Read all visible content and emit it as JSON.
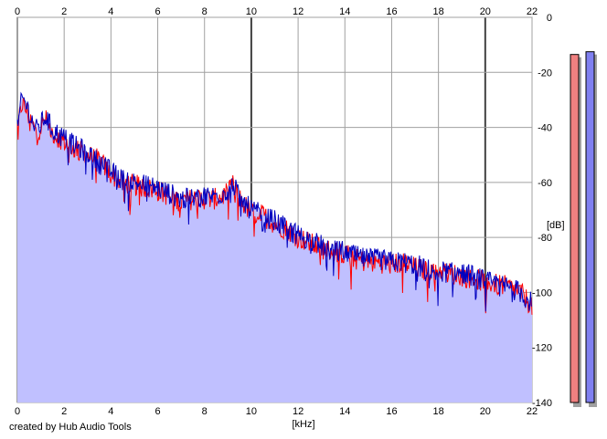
{
  "chart_data": {
    "type": "area",
    "title": "",
    "xlabel": "[kHz]",
    "ylabel": "[dB]",
    "xlim": [
      0,
      22
    ],
    "ylim": [
      -140,
      0
    ],
    "x_ticks_top": [
      "0",
      "2",
      "4",
      "6",
      "8",
      "10",
      "12",
      "14",
      "16",
      "18",
      "20",
      "22"
    ],
    "x_ticks_bottom": [
      "0",
      "2",
      "4",
      "6",
      "8",
      "10",
      "12",
      "14",
      "16",
      "18",
      "20",
      "22"
    ],
    "y_ticks": [
      "0",
      "-20",
      "-40",
      "-60",
      "-80",
      "-100",
      "-120",
      "-140"
    ],
    "grid": true,
    "series": [
      {
        "color": "#ff0000",
        "x": [
          0,
          0.1,
          0.2,
          0.4,
          0.6,
          0.8,
          1,
          1.2,
          1.5,
          2,
          2.5,
          3,
          3.5,
          4,
          4.5,
          5,
          5.5,
          6,
          6.5,
          7,
          7.5,
          8,
          8.5,
          9,
          9.2,
          9.5,
          10,
          10.5,
          11,
          11.5,
          12,
          12.5,
          13,
          13.5,
          14,
          14.5,
          15,
          15.5,
          16,
          16.5,
          17,
          17.5,
          18,
          18.5,
          19,
          19.5,
          20,
          20.5,
          21,
          21.5,
          22
        ],
        "values": [
          -40,
          -36,
          -31,
          -34,
          -38,
          -42,
          -40,
          -37,
          -42,
          -45,
          -48,
          -50,
          -52,
          -57,
          -60,
          -61,
          -62,
          -63,
          -65,
          -67,
          -66,
          -66,
          -66,
          -64,
          -61,
          -66,
          -71,
          -72,
          -75,
          -77,
          -80,
          -82,
          -84,
          -85,
          -86,
          -88,
          -89,
          -89,
          -90,
          -89,
          -91,
          -92,
          -92,
          -93,
          -94,
          -95,
          -96,
          -97,
          -98,
          -100,
          -105
        ]
      },
      {
        "color": "#0000c0",
        "x": [
          0,
          0.1,
          0.2,
          0.4,
          0.6,
          0.8,
          1,
          1.2,
          1.5,
          2,
          2.5,
          3,
          3.5,
          4,
          4.5,
          5,
          5.5,
          6,
          6.5,
          7,
          7.5,
          8,
          8.5,
          9,
          9.2,
          9.5,
          10,
          10.5,
          11,
          11.5,
          12,
          12.5,
          13,
          13.5,
          14,
          14.5,
          15,
          15.5,
          16,
          16.5,
          17,
          17.5,
          18,
          18.5,
          19,
          19.5,
          20,
          20.5,
          21,
          21.5,
          22
        ],
        "values": [
          -41,
          -35,
          -29,
          -32,
          -37,
          -41,
          -39,
          -36,
          -41,
          -44,
          -47,
          -49,
          -53,
          -56,
          -59,
          -60,
          -61,
          -62,
          -64,
          -66,
          -66,
          -65,
          -65,
          -63,
          -60,
          -66,
          -70,
          -72,
          -74,
          -77,
          -79,
          -81,
          -83,
          -85,
          -85,
          -87,
          -88,
          -88,
          -89,
          -89,
          -90,
          -91,
          -92,
          -93,
          -93,
          -94,
          -96,
          -97,
          -98,
          -100,
          -104
        ]
      }
    ],
    "fill_color": "#c0c0ff",
    "level_meters": [
      {
        "color": "#f08080",
        "value": -13.5
      },
      {
        "color": "#8080f0",
        "value": -12.5
      }
    ],
    "meter_range": [
      -140,
      0
    ]
  },
  "footer": {
    "credit": "created by Hub Audio Tools"
  }
}
